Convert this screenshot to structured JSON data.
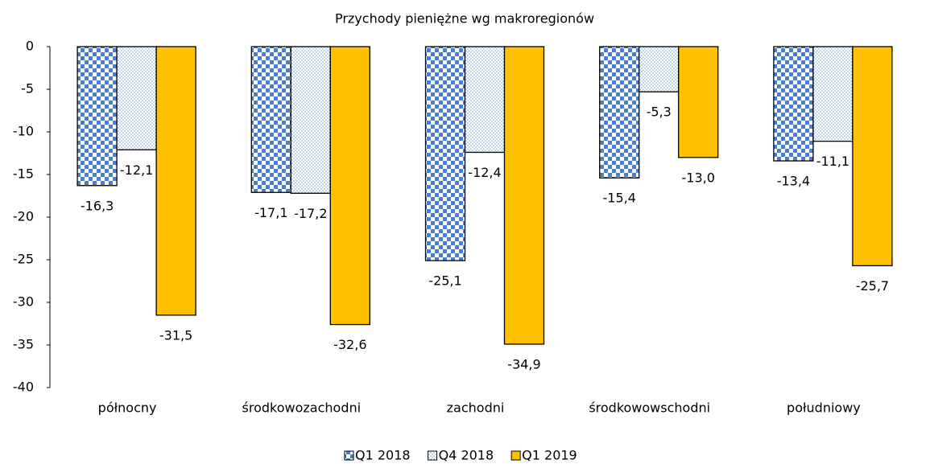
{
  "chart_data": {
    "type": "bar",
    "title": "Przychody pieniężne wg makroregionów",
    "categories": [
      "północny",
      "środkowozachodni",
      "zachodni",
      "środkowowschodni",
      "południowy"
    ],
    "series": [
      {
        "name": "Q1 2018",
        "color": "#4a7fd0",
        "pattern": "checker",
        "values": [
          -16.3,
          -17.1,
          -25.1,
          -15.4,
          -13.4
        ],
        "value_labels": [
          "-16,3",
          "-17,1",
          "-25,1",
          "-15,4",
          "-13,4"
        ]
      },
      {
        "name": "Q4 2018",
        "color": "#7fa8dc",
        "pattern": "dots",
        "values": [
          -12.1,
          -17.2,
          -12.4,
          -5.3,
          -11.1
        ],
        "value_labels": [
          "-12,1",
          "-17,2",
          "-12,4",
          "-5,3",
          "-11,1"
        ]
      },
      {
        "name": "Q1 2019",
        "color": "#ffc000",
        "values": [
          -31.5,
          -32.6,
          -34.9,
          -13.0,
          -25.7
        ],
        "value_labels": [
          "-31,5",
          "-32,6",
          "-34,9",
          "-13,0",
          "-25,7"
        ]
      }
    ],
    "ylim": [
      -40,
      0
    ],
    "yticks": [
      0,
      -5,
      -10,
      -15,
      -20,
      -25,
      -30,
      -35,
      -40
    ],
    "legend": "bottom"
  }
}
